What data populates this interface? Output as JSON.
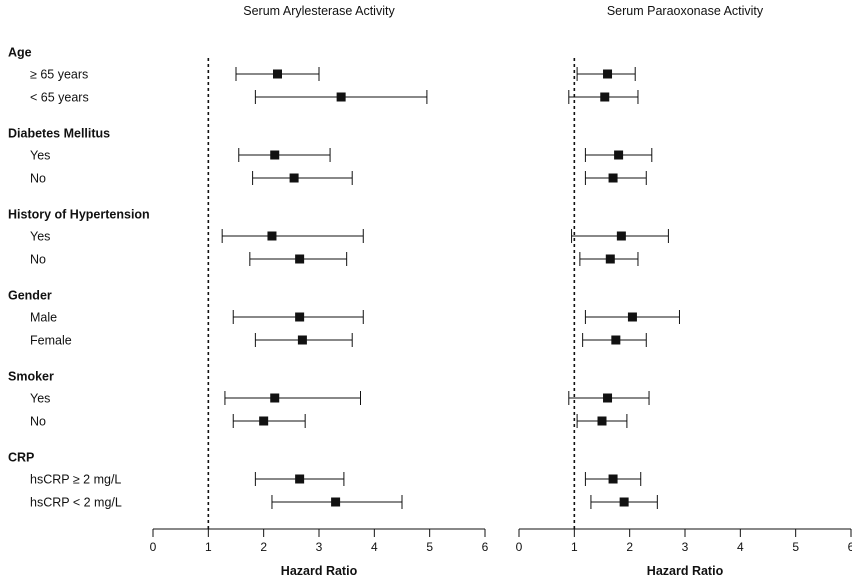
{
  "chart_data": {
    "type": "forest",
    "xlabel": "Hazard Ratio",
    "xlim": [
      0,
      6
    ],
    "xticks": [
      0,
      1,
      2,
      3,
      4,
      5,
      6
    ],
    "reference_line": 1,
    "groups": [
      {
        "category": "Age",
        "rows": [
          {
            "label": "≥ 65 years"
          },
          {
            "label": "< 65 years"
          }
        ]
      },
      {
        "category": "Diabetes Mellitus",
        "rows": [
          {
            "label": "Yes"
          },
          {
            "label": "No"
          }
        ]
      },
      {
        "category": "History of Hypertension",
        "rows": [
          {
            "label": "Yes"
          },
          {
            "label": "No"
          }
        ]
      },
      {
        "category": "Gender",
        "rows": [
          {
            "label": "Male"
          },
          {
            "label": "Female"
          }
        ]
      },
      {
        "category": "Smoker",
        "rows": [
          {
            "label": "Yes"
          },
          {
            "label": "No"
          }
        ]
      },
      {
        "category": "CRP",
        "rows": [
          {
            "label": "hsCRP  ≥ 2 mg/L"
          },
          {
            "label": "hsCRP < 2 mg/L"
          }
        ]
      }
    ],
    "panels": [
      {
        "title": "Serum Arylesterase Activity",
        "estimates": [
          [
            {
              "hr": 2.25,
              "lo": 1.5,
              "hi": 3.0
            },
            {
              "hr": 3.4,
              "lo": 1.85,
              "hi": 4.95
            }
          ],
          [
            {
              "hr": 2.2,
              "lo": 1.55,
              "hi": 3.2
            },
            {
              "hr": 2.55,
              "lo": 1.8,
              "hi": 3.6
            }
          ],
          [
            {
              "hr": 2.15,
              "lo": 1.25,
              "hi": 3.8
            },
            {
              "hr": 2.65,
              "lo": 1.75,
              "hi": 3.5
            }
          ],
          [
            {
              "hr": 2.65,
              "lo": 1.45,
              "hi": 3.8
            },
            {
              "hr": 2.7,
              "lo": 1.85,
              "hi": 3.6
            }
          ],
          [
            {
              "hr": 2.2,
              "lo": 1.3,
              "hi": 3.75
            },
            {
              "hr": 2.0,
              "lo": 1.45,
              "hi": 2.75
            }
          ],
          [
            {
              "hr": 2.65,
              "lo": 1.85,
              "hi": 3.45
            },
            {
              "hr": 3.3,
              "lo": 2.15,
              "hi": 4.5
            }
          ]
        ]
      },
      {
        "title": "Serum Paraoxonase Activity",
        "estimates": [
          [
            {
              "hr": 1.6,
              "lo": 1.05,
              "hi": 2.1
            },
            {
              "hr": 1.55,
              "lo": 0.9,
              "hi": 2.15
            }
          ],
          [
            {
              "hr": 1.8,
              "lo": 1.2,
              "hi": 2.4
            },
            {
              "hr": 1.7,
              "lo": 1.2,
              "hi": 2.3
            }
          ],
          [
            {
              "hr": 1.85,
              "lo": 0.95,
              "hi": 2.7
            },
            {
              "hr": 1.65,
              "lo": 1.1,
              "hi": 2.15
            }
          ],
          [
            {
              "hr": 2.05,
              "lo": 1.2,
              "hi": 2.9
            },
            {
              "hr": 1.75,
              "lo": 1.15,
              "hi": 2.3
            }
          ],
          [
            {
              "hr": 1.6,
              "lo": 0.9,
              "hi": 2.35
            },
            {
              "hr": 1.5,
              "lo": 1.05,
              "hi": 1.95
            }
          ],
          [
            {
              "hr": 1.7,
              "lo": 1.2,
              "hi": 2.2
            },
            {
              "hr": 1.9,
              "lo": 1.3,
              "hi": 2.5
            }
          ]
        ]
      }
    ]
  }
}
